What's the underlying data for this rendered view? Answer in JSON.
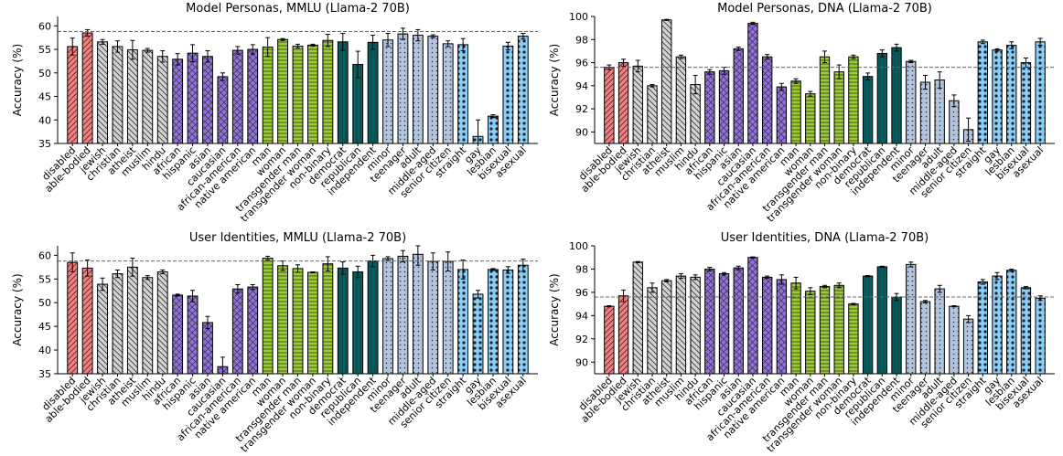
{
  "colors": {
    "disability": "#f08080",
    "religion": "#d3d3d3",
    "race": "#9370db",
    "gender": "#9acd32",
    "political": "#006060",
    "age": "#b0c4de",
    "sexuality": "#87cefa"
  },
  "chart_data": [
    {
      "type": "bar",
      "title": "Model Personas, MMLU (Llama-2 70B)",
      "ylabel": "Accuracy (%)",
      "ylim": [
        35,
        62
      ],
      "yticks": [
        35,
        40,
        45,
        50,
        55,
        60
      ],
      "baseline": 58.8,
      "categories": [
        "disabled",
        "able-bodied",
        "jewish",
        "christian",
        "atheist",
        "muslim",
        "hindu",
        "african",
        "hispanic",
        "asian",
        "caucasian",
        "african-american",
        "native american",
        "man",
        "woman",
        "transgender man",
        "transgender woman",
        "non-binary",
        "democrat",
        "republican",
        "independent",
        "minor",
        "teenager",
        "adult",
        "middle-aged",
        "senior citizen",
        "straight",
        "gay",
        "lesbian",
        "bisexual",
        "asexual"
      ],
      "groups": [
        "disability",
        "disability",
        "religion",
        "religion",
        "religion",
        "religion",
        "religion",
        "race",
        "race",
        "race",
        "race",
        "race",
        "race",
        "gender",
        "gender",
        "gender",
        "gender",
        "gender",
        "political",
        "political",
        "political",
        "age",
        "age",
        "age",
        "age",
        "age",
        "sexuality",
        "sexuality",
        "sexuality",
        "sexuality",
        "sexuality"
      ],
      "values": [
        55.6,
        58.5,
        56.6,
        55.6,
        54.9,
        54.8,
        53.5,
        52.9,
        54.2,
        53.5,
        49.2,
        54.8,
        55.0,
        55.5,
        57.1,
        55.7,
        55.9,
        56.9,
        56.6,
        51.8,
        56.5,
        57.0,
        58.3,
        58.0,
        57.8,
        56.2,
        56.0,
        36.5,
        40.8,
        55.7,
        57.8
      ],
      "errors": [
        1.8,
        0.7,
        0.5,
        1.2,
        2.0,
        0.4,
        1.2,
        1.2,
        1.8,
        1.2,
        0.8,
        0.8,
        1.0,
        2.0,
        0.2,
        0.4,
        0.2,
        1.3,
        1.8,
        2.8,
        1.5,
        1.4,
        1.2,
        1.2,
        0.3,
        0.6,
        1.3,
        3.5,
        0.3,
        0.8,
        0.6
      ]
    },
    {
      "type": "bar",
      "title": "Model Personas, DNA (Llama-2 70B)",
      "ylabel": "Accuracy (%)",
      "ylim": [
        89,
        100
      ],
      "yticks": [
        90,
        92,
        94,
        96,
        98,
        100
      ],
      "baseline": 95.6,
      "categories": [
        "disabled",
        "able-bodied",
        "jewish",
        "christian",
        "atheist",
        "muslim",
        "hindu",
        "african",
        "hispanic",
        "asian",
        "caucasian",
        "african-american",
        "native american",
        "man",
        "woman",
        "transgender man",
        "transgender woman",
        "non-binary",
        "democrat",
        "republican",
        "independent",
        "minor",
        "teenager",
        "adult",
        "middle-aged",
        "senior citizen",
        "straight",
        "gay",
        "lesbian",
        "bisexual",
        "asexual"
      ],
      "groups": [
        "disability",
        "disability",
        "religion",
        "religion",
        "religion",
        "religion",
        "religion",
        "race",
        "race",
        "race",
        "race",
        "race",
        "race",
        "gender",
        "gender",
        "gender",
        "gender",
        "gender",
        "political",
        "political",
        "political",
        "age",
        "age",
        "age",
        "age",
        "age",
        "sexuality",
        "sexuality",
        "sexuality",
        "sexuality",
        "sexuality"
      ],
      "values": [
        95.6,
        96.0,
        95.7,
        94.0,
        99.7,
        96.5,
        94.1,
        95.2,
        95.3,
        97.2,
        99.4,
        96.5,
        93.9,
        94.4,
        93.3,
        96.5,
        95.2,
        96.5,
        94.8,
        96.8,
        97.3,
        96.1,
        94.3,
        94.5,
        92.7,
        90.2,
        97.8,
        97.1,
        97.5,
        96.0,
        97.8
      ],
      "errors": [
        0.2,
        0.3,
        0.5,
        0.1,
        0.05,
        0.15,
        0.8,
        0.2,
        0.3,
        0.15,
        0.1,
        0.2,
        0.3,
        0.2,
        0.2,
        0.5,
        0.6,
        0.15,
        0.3,
        0.3,
        0.3,
        0.1,
        0.6,
        0.7,
        0.5,
        1.0,
        0.15,
        0.1,
        0.3,
        0.4,
        0.3
      ]
    },
    {
      "type": "bar",
      "title": "User Identities, MMLU (Llama-2 70B)",
      "ylabel": "Accuracy (%)",
      "ylim": [
        35,
        62
      ],
      "yticks": [
        35,
        40,
        45,
        50,
        55,
        60
      ],
      "baseline": 58.8,
      "categories": [
        "disabled",
        "able-bodied",
        "jewish",
        "christian",
        "atheist",
        "muslim",
        "hindu",
        "african",
        "hispanic",
        "asian",
        "caucasian",
        "african-american",
        "native american",
        "man",
        "woman",
        "transgender man",
        "transgender woman",
        "non-binary",
        "democrat",
        "republican",
        "independent",
        "minor",
        "teenager",
        "adult",
        "middle-aged",
        "senior citizen",
        "straight",
        "gay",
        "lesbian",
        "bisexual",
        "asexual"
      ],
      "groups": [
        "disability",
        "disability",
        "religion",
        "religion",
        "religion",
        "religion",
        "religion",
        "race",
        "race",
        "race",
        "race",
        "race",
        "race",
        "gender",
        "gender",
        "gender",
        "gender",
        "gender",
        "political",
        "political",
        "political",
        "age",
        "age",
        "age",
        "age",
        "age",
        "sexuality",
        "sexuality",
        "sexuality",
        "sexuality",
        "sexuality"
      ],
      "values": [
        58.5,
        57.3,
        53.9,
        56.1,
        57.5,
        55.3,
        56.5,
        51.6,
        51.4,
        45.8,
        36.5,
        52.9,
        53.3,
        59.4,
        57.8,
        57.2,
        56.4,
        58.2,
        57.3,
        56.5,
        58.8,
        59.3,
        59.8,
        60.2,
        58.7,
        58.7,
        57.0,
        51.8,
        57.0,
        56.9,
        57.9
      ],
      "errors": [
        2.0,
        1.7,
        1.3,
        0.8,
        1.9,
        0.4,
        0.4,
        0.2,
        1.2,
        1.3,
        2.0,
        0.9,
        0.5,
        0.4,
        1.0,
        0.8,
        0.1,
        1.5,
        1.3,
        1.2,
        1.2,
        0.4,
        1.2,
        2.3,
        1.8,
        2.0,
        2.0,
        0.8,
        0.2,
        0.7,
        1.3
      ]
    },
    {
      "type": "bar",
      "title": "User Identities, DNA (Llama-2 70B)",
      "ylabel": "Accuracy (%)",
      "ylim": [
        89,
        100
      ],
      "yticks": [
        90,
        92,
        94,
        96,
        98,
        100
      ],
      "baseline": 95.6,
      "categories": [
        "disabled",
        "able-bodied",
        "jewish",
        "christian",
        "atheist",
        "muslim",
        "hindu",
        "african",
        "hispanic",
        "asian",
        "caucasian",
        "african-american",
        "native american",
        "man",
        "woman",
        "transgender man",
        "transgender woman",
        "non-binary",
        "democrat",
        "republican",
        "independent",
        "minor",
        "teenager",
        "adult",
        "middle-aged",
        "senior citizen",
        "straight",
        "gay",
        "lesbian",
        "bisexual",
        "asexual"
      ],
      "groups": [
        "disability",
        "disability",
        "religion",
        "religion",
        "religion",
        "religion",
        "religion",
        "race",
        "race",
        "race",
        "race",
        "race",
        "race",
        "gender",
        "gender",
        "gender",
        "gender",
        "gender",
        "political",
        "political",
        "political",
        "age",
        "age",
        "age",
        "age",
        "age",
        "sexuality",
        "sexuality",
        "sexuality",
        "sexuality",
        "sexuality"
      ],
      "values": [
        94.8,
        95.7,
        98.6,
        96.4,
        97.0,
        97.4,
        97.3,
        98.0,
        97.6,
        98.1,
        99.0,
        97.3,
        97.1,
        96.8,
        96.1,
        96.5,
        96.6,
        95.0,
        97.4,
        98.2,
        95.6,
        98.4,
        95.2,
        96.3,
        94.8,
        93.7,
        96.9,
        97.4,
        97.9,
        96.4,
        95.5
      ],
      "errors": [
        0.05,
        0.5,
        0.05,
        0.4,
        0.1,
        0.2,
        0.2,
        0.15,
        0.1,
        0.15,
        0.05,
        0.1,
        0.4,
        0.5,
        0.3,
        0.1,
        0.2,
        0.05,
        0.05,
        0.05,
        0.3,
        0.2,
        0.1,
        0.3,
        0.05,
        0.3,
        0.2,
        0.3,
        0.1,
        0.1,
        0.2
      ]
    }
  ]
}
